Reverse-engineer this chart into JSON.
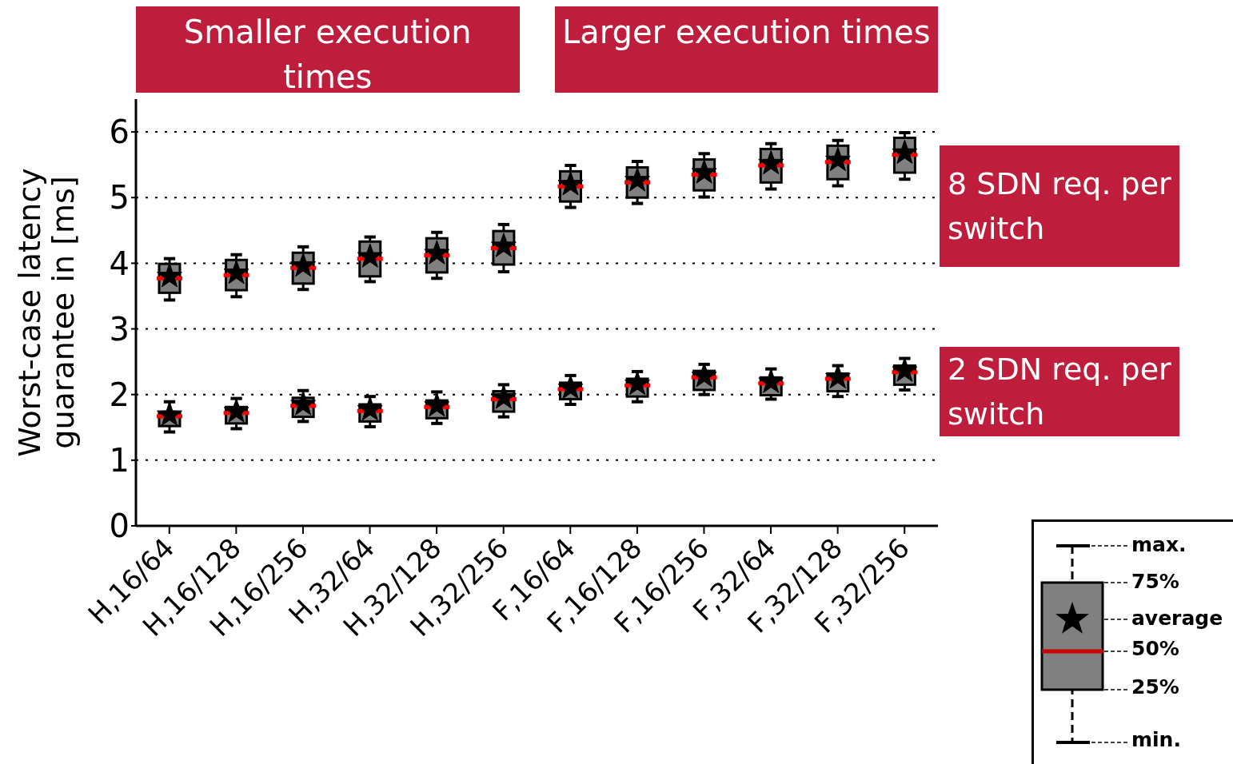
{
  "chart_data": {
    "type": "box",
    "ylabel": "Worst-case latency guarantee in [ms]",
    "categories": [
      "H,16/64",
      "H,16/128",
      "H,16/256",
      "H,32/64",
      "H,32/128",
      "H,32/256",
      "F,16/64",
      "F,16/128",
      "F,16/256",
      "F,32/64",
      "F,32/128",
      "F,32/256"
    ],
    "series": [
      {
        "name": "8 SDN req. per switch",
        "color": "#808080",
        "boxes": [
          {
            "low": 3.44,
            "q1": 3.55,
            "median": 3.77,
            "q3": 3.99,
            "high": 4.07,
            "mean": 3.8
          },
          {
            "low": 3.49,
            "q1": 3.59,
            "median": 3.82,
            "q3": 4.05,
            "high": 4.13,
            "mean": 3.85
          },
          {
            "low": 3.6,
            "q1": 3.69,
            "median": 3.93,
            "q3": 4.16,
            "high": 4.25,
            "mean": 3.96
          },
          {
            "low": 3.72,
            "q1": 3.8,
            "median": 4.07,
            "q3": 4.33,
            "high": 4.4,
            "mean": 4.1
          },
          {
            "low": 3.77,
            "q1": 3.86,
            "median": 4.12,
            "q3": 4.38,
            "high": 4.47,
            "mean": 4.15
          },
          {
            "low": 3.87,
            "q1": 3.98,
            "median": 4.23,
            "q3": 4.49,
            "high": 4.59,
            "mean": 4.26
          },
          {
            "low": 4.85,
            "q1": 4.94,
            "median": 5.17,
            "q3": 5.4,
            "high": 5.49,
            "mean": 5.2
          },
          {
            "low": 4.91,
            "q1": 5.0,
            "median": 5.23,
            "q3": 5.46,
            "high": 5.55,
            "mean": 5.26
          },
          {
            "low": 5.01,
            "q1": 5.11,
            "median": 5.35,
            "q3": 5.58,
            "high": 5.67,
            "mean": 5.38
          },
          {
            "low": 5.13,
            "q1": 5.23,
            "median": 5.49,
            "q3": 5.74,
            "high": 5.82,
            "mean": 5.52
          },
          {
            "low": 5.18,
            "q1": 5.28,
            "median": 5.54,
            "q3": 5.79,
            "high": 5.87,
            "mean": 5.57
          },
          {
            "low": 5.28,
            "q1": 5.38,
            "median": 5.65,
            "q3": 5.91,
            "high": 5.99,
            "mean": 5.68
          }
        ]
      },
      {
        "name": "2 SDN req. per switch",
        "color": "#808080",
        "boxes": [
          {
            "low": 1.43,
            "q1": 1.52,
            "median": 1.67,
            "q3": 1.72,
            "high": 1.89,
            "mean": 1.69
          },
          {
            "low": 1.48,
            "q1": 1.56,
            "median": 1.72,
            "q3": 1.81,
            "high": 1.94,
            "mean": 1.74
          },
          {
            "low": 1.59,
            "q1": 1.66,
            "median": 1.83,
            "q3": 1.95,
            "high": 2.06,
            "mean": 1.85
          },
          {
            "low": 1.51,
            "q1": 1.59,
            "median": 1.75,
            "q3": 1.85,
            "high": 1.97,
            "mean": 1.77
          },
          {
            "low": 1.56,
            "q1": 1.64,
            "median": 1.81,
            "q3": 1.91,
            "high": 2.04,
            "mean": 1.83
          },
          {
            "low": 1.66,
            "q1": 1.74,
            "median": 1.93,
            "q3": 2.05,
            "high": 2.15,
            "mean": 1.95
          },
          {
            "low": 1.85,
            "q1": 1.93,
            "median": 2.08,
            "q3": 2.18,
            "high": 2.29,
            "mean": 2.1
          },
          {
            "low": 1.89,
            "q1": 1.97,
            "median": 2.14,
            "q3": 2.24,
            "high": 2.35,
            "mean": 2.16
          },
          {
            "low": 2.0,
            "q1": 2.07,
            "median": 2.26,
            "q3": 2.36,
            "high": 2.46,
            "mean": 2.28
          },
          {
            "low": 1.93,
            "q1": 1.99,
            "median": 2.17,
            "q3": 2.26,
            "high": 2.39,
            "mean": 2.19
          },
          {
            "low": 1.97,
            "q1": 2.05,
            "median": 2.24,
            "q3": 2.32,
            "high": 2.44,
            "mean": 2.26
          },
          {
            "low": 2.07,
            "q1": 2.15,
            "median": 2.34,
            "q3": 2.44,
            "high": 2.55,
            "mean": 2.36
          }
        ]
      }
    ],
    "ylim": [
      0,
      6.5
    ],
    "yticks": [
      0,
      1,
      2,
      3,
      4,
      5,
      6
    ],
    "grid": "y",
    "annotations": [
      "Smaller execution times",
      "Larger execution times",
      "max.",
      "75%",
      "average",
      "50%",
      "25%",
      "min."
    ]
  }
}
